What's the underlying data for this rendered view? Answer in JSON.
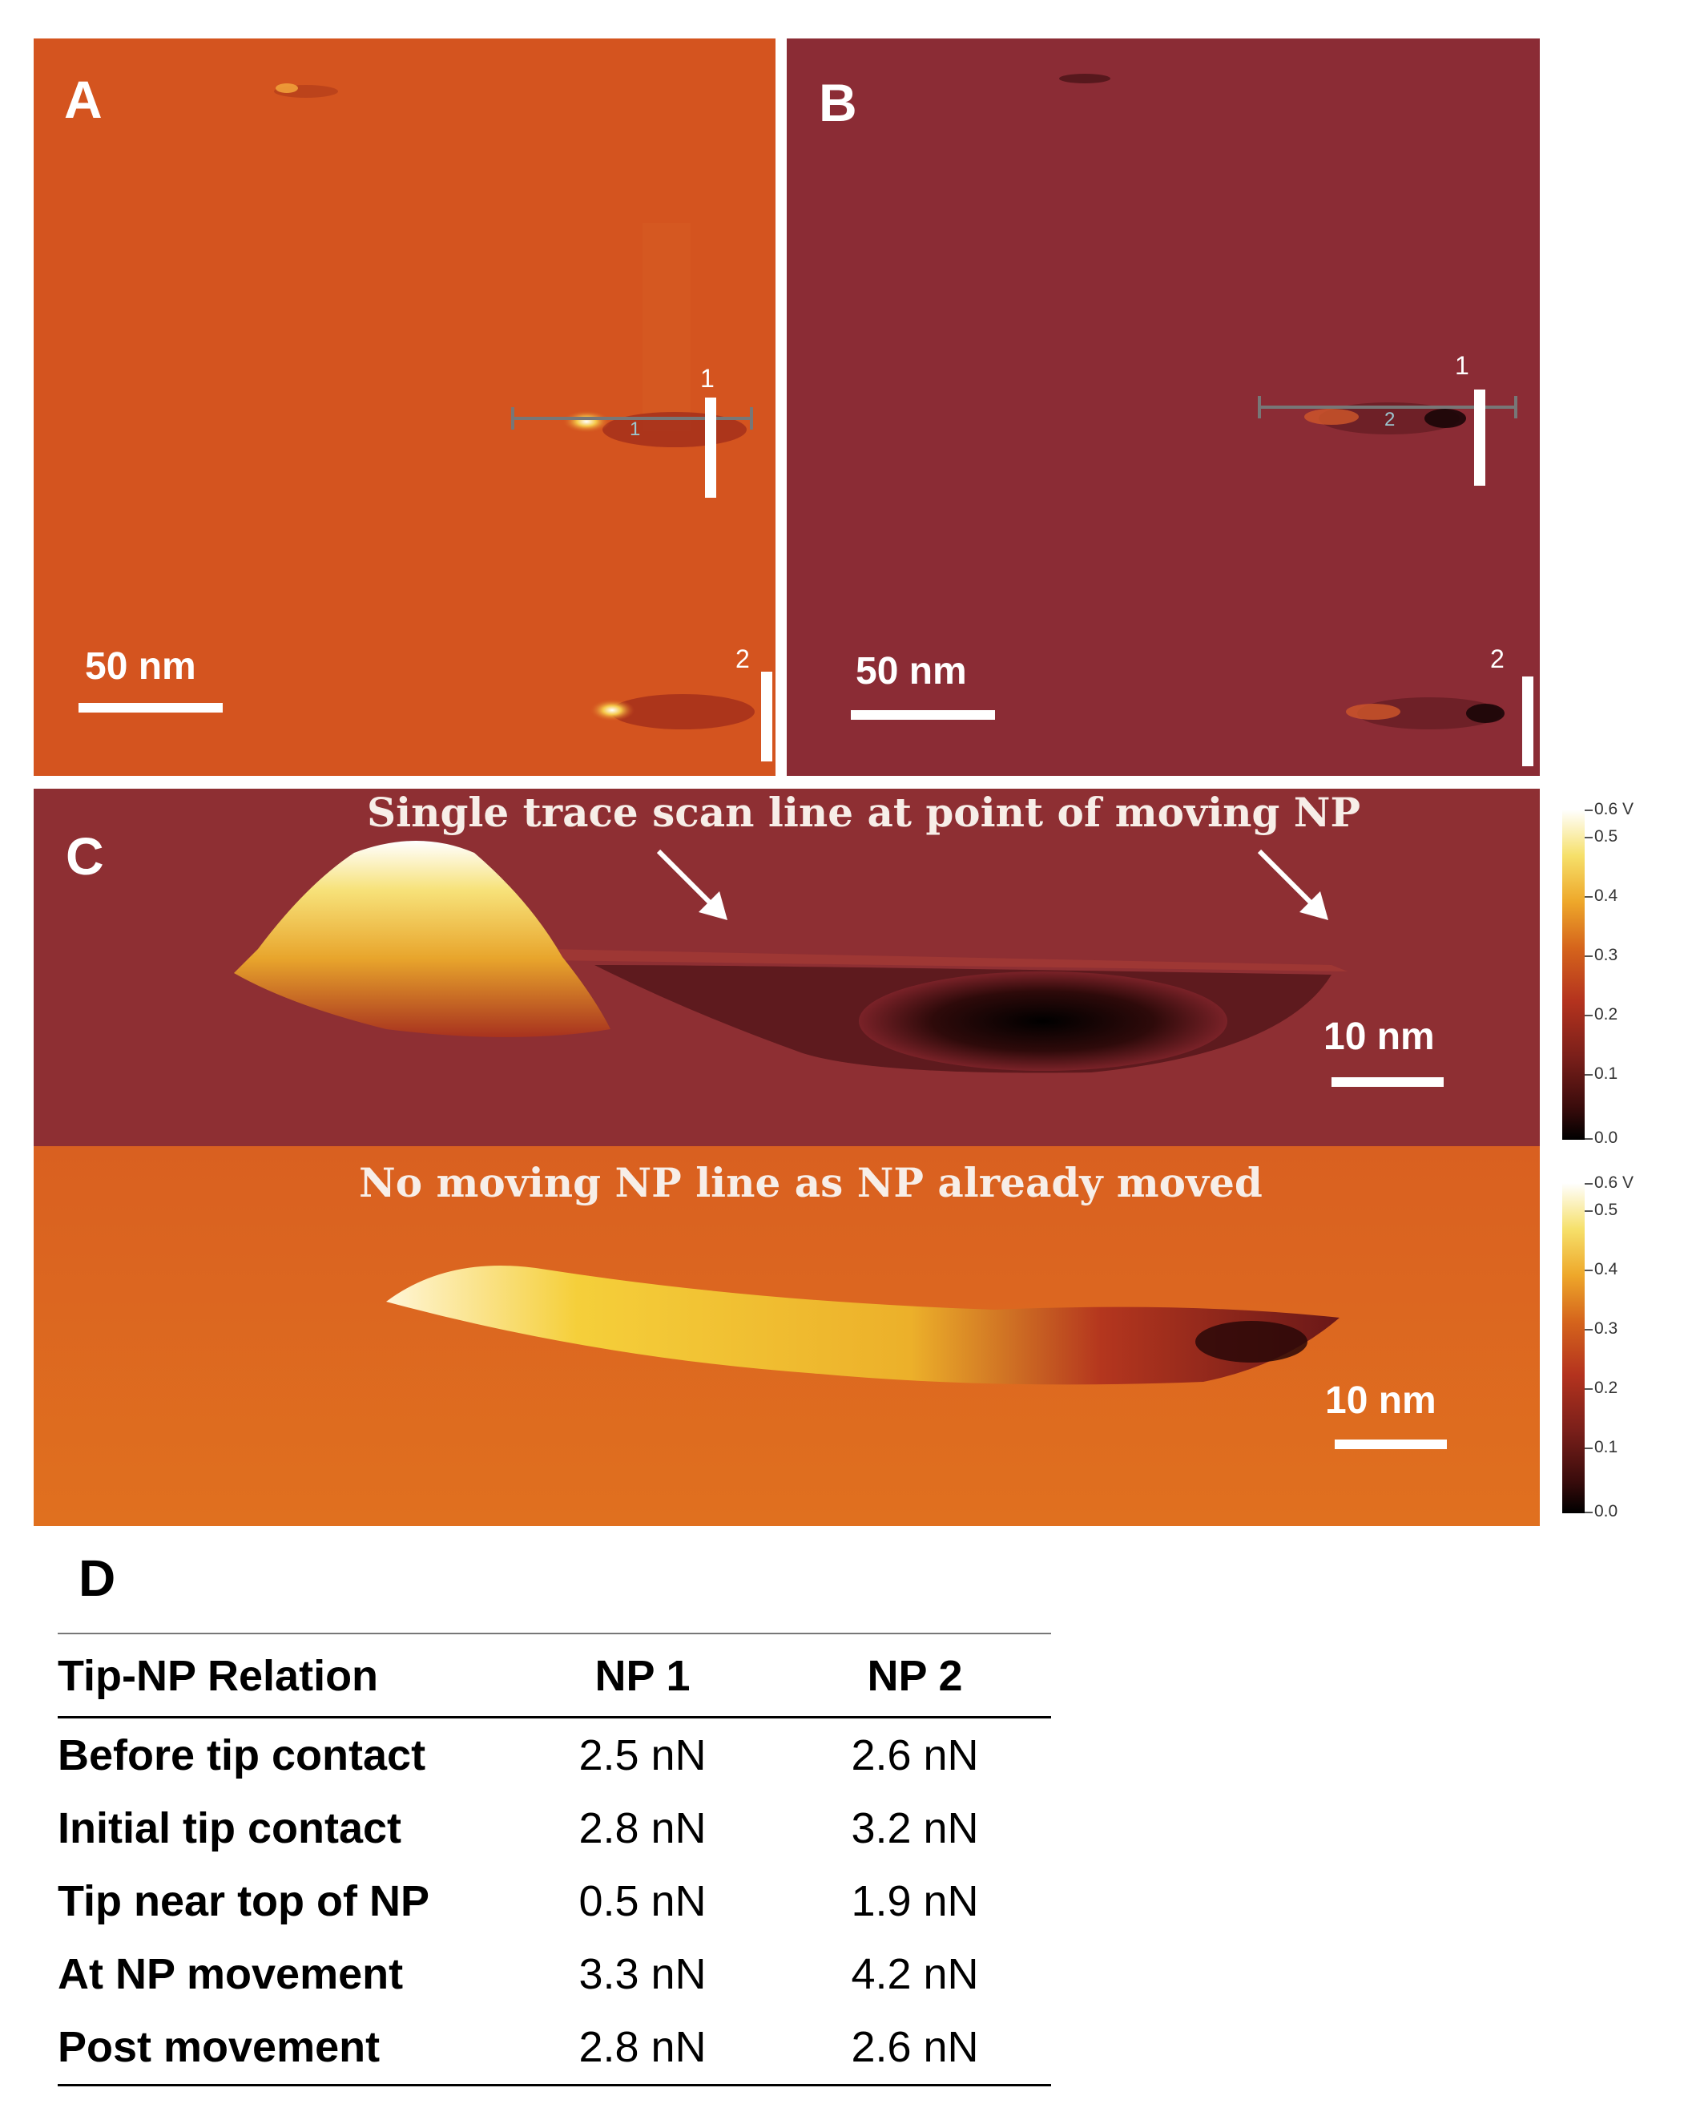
{
  "panels": {
    "a": {
      "label": "A",
      "scale": "50 nm",
      "marker1": "1",
      "marker2": "2",
      "line_tag": "1"
    },
    "b": {
      "label": "B",
      "scale": "50 nm",
      "marker1": "1",
      "marker2": "2",
      "line_tag": "2"
    },
    "c": {
      "label": "C",
      "top_caption": "Single trace scan line at point of moving NP",
      "bottom_caption": "No moving NP line as NP already moved",
      "scale_top": "10 nm",
      "scale_bottom": "10 nm",
      "colorbar_ticks": [
        "0.6 V",
        "0.5",
        "0.4",
        "0.3",
        "0.2",
        "0.1",
        "0.0"
      ]
    }
  },
  "table": {
    "label": "D",
    "headers": [
      "Tip-NP Relation",
      "NP 1",
      "NP 2"
    ],
    "rows": [
      [
        "Before tip contact",
        "2.5 nN",
        "2.6 nN"
      ],
      [
        "Initial tip contact",
        "2.8 nN",
        "3.2 nN"
      ],
      [
        "Tip near top of NP",
        "0.5 nN",
        "1.9 nN"
      ],
      [
        "At NP movement",
        "3.3 nN",
        "4.2 nN"
      ],
      [
        "Post movement",
        "2.8 nN",
        "2.6 nN"
      ]
    ]
  },
  "colors": {
    "panel_a": "#d4541f",
    "panel_b": "#8b2c35",
    "panel_c_top": "#8e2f33",
    "panel_c_bottom": "#db6820"
  }
}
